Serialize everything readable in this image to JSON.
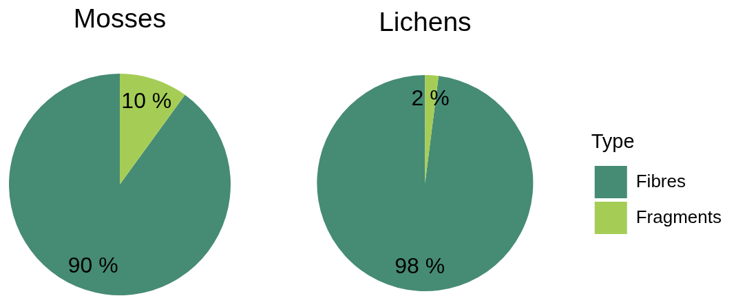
{
  "chart_data": [
    {
      "type": "pie",
      "title": "Mosses",
      "categories": [
        null,
        null
      ],
      "values": [
        90,
        10
      ],
      "colors": [
        "#468b74",
        "#a5cd56"
      ],
      "value_labels": [
        "90 %",
        "10 %"
      ]
    },
    {
      "type": "pie",
      "title": "Lichens",
      "categories": [
        "Fibres",
        "Fragments"
      ],
      "values": [
        98,
        2
      ],
      "colors": [
        "#468b74",
        "#a5cd56"
      ],
      "value_labels": [
        "98 %",
        "2 %"
      ],
      "legend": "right",
      "legend_title": "Type"
    }
  ]
}
